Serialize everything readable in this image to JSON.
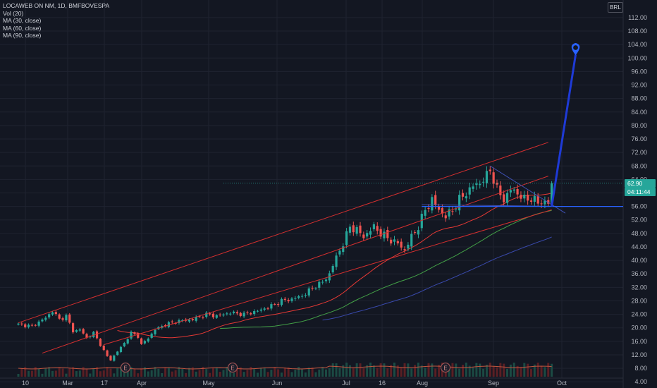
{
  "chart_data": {
    "type": "candlestick",
    "title": "LOCAWEB ON NM, 1D, BMFBOVESPA",
    "indicators": [
      "Vol (20)",
      "MA (30, close)",
      "MA (60, close)",
      "MA (90, close)"
    ],
    "currency": "BRL",
    "y_ticks": [
      "112.00",
      "108.00",
      "104.00",
      "100.00",
      "96.00",
      "92.00",
      "88.00",
      "84.00",
      "80.00",
      "76.00",
      "72.00",
      "68.00",
      "64.00",
      "60.00",
      "56.00",
      "52.00",
      "48.00",
      "44.00",
      "40.00",
      "36.00",
      "32.00",
      "28.00",
      "24.00",
      "20.00",
      "16.00",
      "12.00",
      "8.00",
      "4.00"
    ],
    "y_range": [
      3,
      117
    ],
    "x_labels": [
      "10",
      "Mar",
      "17",
      "Apr",
      "May",
      "Jun",
      "Jul",
      "16",
      "Aug",
      "Sep",
      "Oct"
    ],
    "last_price": "62.90",
    "countdown": "04:11:44",
    "target_price": 101,
    "support_level": 56,
    "earnings_markers": [
      "E",
      "E",
      "E"
    ],
    "anchors": [
      [
        0,
        21
      ],
      [
        4,
        20.5
      ],
      [
        8,
        23
      ],
      [
        10,
        25
      ],
      [
        12,
        22.5
      ],
      [
        14,
        23.5
      ],
      [
        16,
        19
      ],
      [
        18,
        19.5
      ],
      [
        20,
        17
      ],
      [
        22,
        18.5
      ],
      [
        24,
        15
      ],
      [
        26,
        11.5
      ],
      [
        27,
        10.5
      ],
      [
        29,
        13
      ],
      [
        31,
        15.5
      ],
      [
        33,
        18.5
      ],
      [
        35,
        17.5
      ],
      [
        36,
        15
      ],
      [
        38,
        17
      ],
      [
        40,
        19.5
      ],
      [
        43,
        21
      ],
      [
        47,
        22
      ],
      [
        51,
        22.5
      ],
      [
        55,
        24
      ],
      [
        58,
        23.5
      ],
      [
        62,
        24.5
      ],
      [
        66,
        24
      ],
      [
        70,
        25
      ],
      [
        74,
        26.5
      ],
      [
        77,
        28
      ],
      [
        80,
        28.5
      ],
      [
        83,
        29.5
      ],
      [
        85,
        31
      ],
      [
        87,
        32.5
      ],
      [
        89,
        33.5
      ],
      [
        91,
        36
      ],
      [
        93,
        41
      ],
      [
        95,
        45
      ],
      [
        97,
        50
      ],
      [
        99,
        49
      ],
      [
        101,
        47
      ],
      [
        104,
        50
      ],
      [
        106,
        48
      ],
      [
        109,
        46
      ],
      [
        111,
        45
      ],
      [
        113,
        43
      ],
      [
        115,
        47
      ],
      [
        117,
        50
      ],
      [
        119,
        55
      ],
      [
        121,
        58
      ],
      [
        123,
        55
      ],
      [
        125,
        53
      ],
      [
        127,
        55
      ],
      [
        129,
        58
      ],
      [
        131,
        60
      ],
      [
        133,
        62
      ],
      [
        135,
        63
      ],
      [
        137,
        65
      ],
      [
        138,
        67
      ],
      [
        140,
        61
      ],
      [
        142,
        58
      ],
      [
        144,
        61
      ],
      [
        146,
        60
      ],
      [
        148,
        58
      ],
      [
        150,
        58.5
      ],
      [
        152,
        57
      ],
      [
        154,
        57.5
      ],
      [
        155,
        57
      ],
      [
        156,
        62.9
      ]
    ],
    "channel_lines": [
      {
        "from": [
          0,
          21.5
        ],
        "to": [
          155,
          75
        ]
      },
      {
        "from": [
          7,
          12.5
        ],
        "to": [
          155,
          65
        ]
      },
      {
        "from": [
          25,
          15
        ],
        "to": [
          156,
          55
        ]
      }
    ],
    "triangle_lines": [
      {
        "from": [
          138,
          68
        ],
        "to": [
          160,
          54
        ]
      },
      {
        "from": [
          118,
          56.5
        ],
        "to": [
          160,
          56
        ]
      }
    ],
    "projection": {
      "from": [
        156,
        56
      ],
      "to": [
        163,
        101
      ]
    }
  }
}
